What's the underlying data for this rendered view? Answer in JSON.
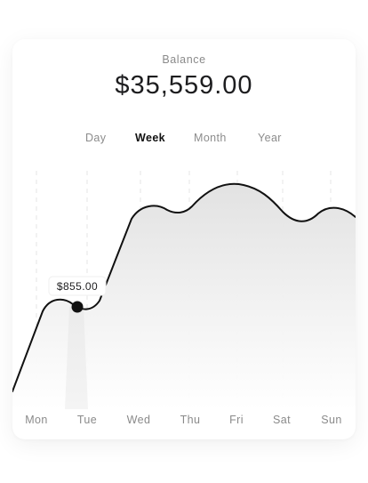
{
  "balance": {
    "label": "Balance",
    "value": "$35,559.00"
  },
  "tabs": [
    {
      "label": "Day",
      "active": false
    },
    {
      "label": "Week",
      "active": true
    },
    {
      "label": "Month",
      "active": false
    },
    {
      "label": "Year",
      "active": false
    }
  ],
  "tooltip": {
    "value": "$855.00",
    "day": "Tue"
  },
  "colors": {
    "line": "#111111",
    "fill_top": "#e4e4e4",
    "fill_bottom": "#ffffff",
    "active_tab": "#111111",
    "inactive_tab": "#8c8c8c",
    "grid": "#e2e2e2"
  },
  "chart_data": {
    "type": "area",
    "categories": [
      "Mon",
      "Tue",
      "Wed",
      "Thu",
      "Fri",
      "Sat",
      "Sun"
    ],
    "selected_category": "Tue",
    "selected_value": 855,
    "grid": "vertical-dashed",
    "curve": "smooth"
  }
}
